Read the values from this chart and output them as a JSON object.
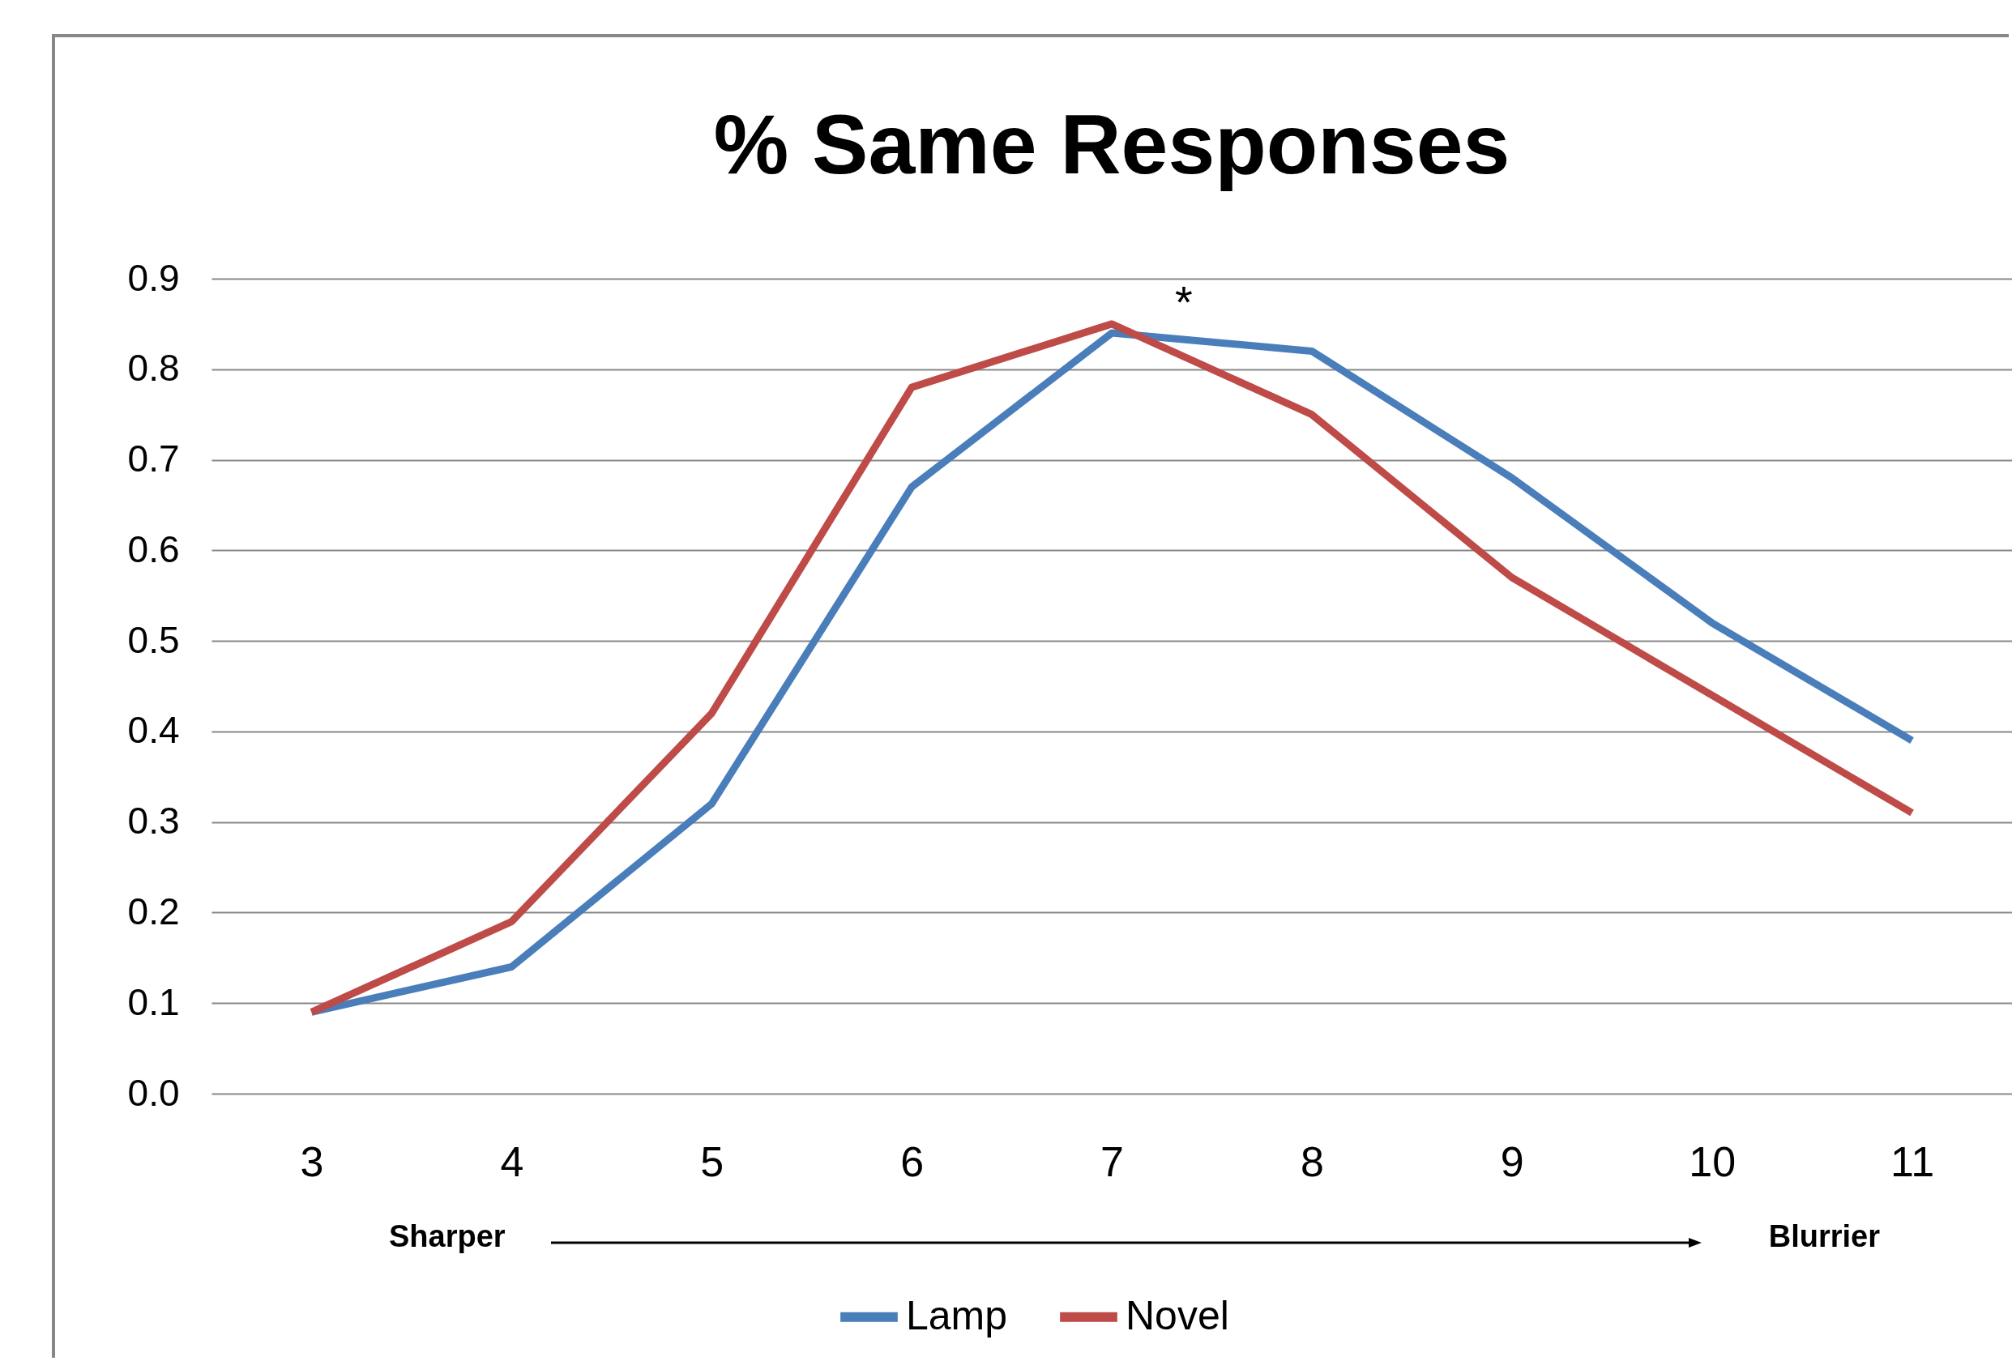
{
  "chart_data": {
    "type": "line",
    "title": "% Same Responses",
    "categories": [
      "3",
      "4",
      "5",
      "6",
      "7",
      "8",
      "9",
      "10",
      "11"
    ],
    "series": [
      {
        "name": "Lamp",
        "color": "#4a7ebb",
        "values": [
          0.09,
          0.14,
          0.32,
          0.67,
          0.84,
          0.82,
          0.68,
          0.52,
          0.39
        ]
      },
      {
        "name": "Novel",
        "color": "#be4b48",
        "values": [
          0.09,
          0.19,
          0.42,
          0.78,
          0.85,
          0.75,
          0.57,
          0.44,
          0.31
        ]
      }
    ],
    "ylim": [
      0,
      0.9
    ],
    "yticks": [
      {
        "value": 0,
        "label": "0.0"
      },
      0.1,
      0.2,
      0.3,
      0.4,
      0.5,
      0.6,
      0.7,
      0.8,
      0.9
    ],
    "grid": "y",
    "legend": "bottom",
    "line_style": "solid",
    "marker": "none",
    "annotations": [
      "*",
      "Sharper",
      "Blurrier"
    ]
  }
}
